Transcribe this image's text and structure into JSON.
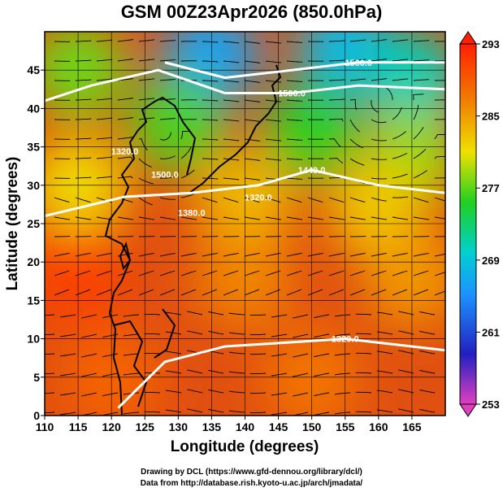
{
  "title": "GSM 00Z23Apr2026 (850.0hPa)",
  "x_axis_label": "Longitude (degrees)",
  "y_axis_label": "Latitude  (degrees)",
  "x_ticks": [
    "110",
    "115",
    "120",
    "125",
    "130",
    "135",
    "140",
    "145",
    "150",
    "155",
    "160",
    "165"
  ],
  "y_ticks": [
    "0",
    "5",
    "10",
    "15",
    "20",
    "25",
    "30",
    "35",
    "40",
    "45"
  ],
  "colorbar_ticks": [
    "293",
    "285",
    "277",
    "269",
    "261",
    "253"
  ],
  "contour_labels": [
    "1560.0",
    "1500.0",
    "1440.0",
    "1380.0",
    "1320.0",
    "1500.0",
    "1380.0",
    "1320.0"
  ],
  "credit_line1": "Drawing by DCL (https://www.gfd-dennou.org/library/dcl/)",
  "credit_line2": "Data from http://database.rish.kyoto-u.ac.jp/arch/jmadata/",
  "chart_data": {
    "type": "heatmap",
    "variable": "temperature (K) with geopotential height contours and wind streamlines",
    "xlim": [
      110,
      170
    ],
    "ylim": [
      0,
      50
    ],
    "colorbar_range": [
      253,
      293
    ],
    "colorbar_colors": [
      "#e040c0",
      "#2020c0",
      "#1e90ff",
      "#00d0d0",
      "#20d020",
      "#f0e000",
      "#f08000",
      "#ff2000"
    ],
    "temperature_field_points": [
      {
        "lon": 115,
        "lat": 45,
        "temp": 278
      },
      {
        "lon": 135,
        "lat": 47,
        "temp": 266
      },
      {
        "lon": 155,
        "lat": 48,
        "temp": 268
      },
      {
        "lon": 165,
        "lat": 44,
        "temp": 271
      },
      {
        "lon": 130,
        "lat": 38,
        "temp": 277
      },
      {
        "lon": 150,
        "lat": 37,
        "temp": 276
      },
      {
        "lon": 165,
        "lat": 34,
        "temp": 279
      },
      {
        "lon": 115,
        "lat": 30,
        "temp": 282
      },
      {
        "lon": 140,
        "lat": 28,
        "temp": 284
      },
      {
        "lon": 160,
        "lat": 27,
        "temp": 283
      },
      {
        "lon": 115,
        "lat": 18,
        "temp": 291
      },
      {
        "lon": 140,
        "lat": 18,
        "temp": 287
      },
      {
        "lon": 165,
        "lat": 18,
        "temp": 286
      },
      {
        "lon": 120,
        "lat": 5,
        "temp": 289
      },
      {
        "lon": 150,
        "lat": 5,
        "temp": 288
      }
    ],
    "contours": [
      {
        "label": "1560.0",
        "points": [
          [
            128,
            46
          ],
          [
            137,
            44
          ],
          [
            147,
            45
          ],
          [
            157,
            46
          ],
          [
            170,
            46
          ]
        ]
      },
      {
        "label": "1500.0",
        "points": [
          [
            110,
            41
          ],
          [
            117,
            43
          ],
          [
            127,
            45
          ],
          [
            137,
            42
          ],
          [
            147,
            42
          ],
          [
            157,
            43
          ],
          [
            170,
            42.5
          ]
        ]
      },
      {
        "label": "1440.0",
        "points": [
          [
            110,
            26
          ],
          [
            122,
            28.5
          ],
          [
            132,
            29
          ],
          [
            142,
            30
          ],
          [
            150,
            32
          ],
          [
            160,
            30
          ],
          [
            170,
            29
          ]
        ]
      },
      {
        "label": "1320.0",
        "points": [
          [
            121,
            1
          ],
          [
            128,
            7
          ],
          [
            137,
            9
          ],
          [
            146,
            9.5
          ],
          [
            155,
            10
          ],
          [
            165,
            9
          ],
          [
            170,
            8.5
          ]
        ]
      }
    ]
  }
}
